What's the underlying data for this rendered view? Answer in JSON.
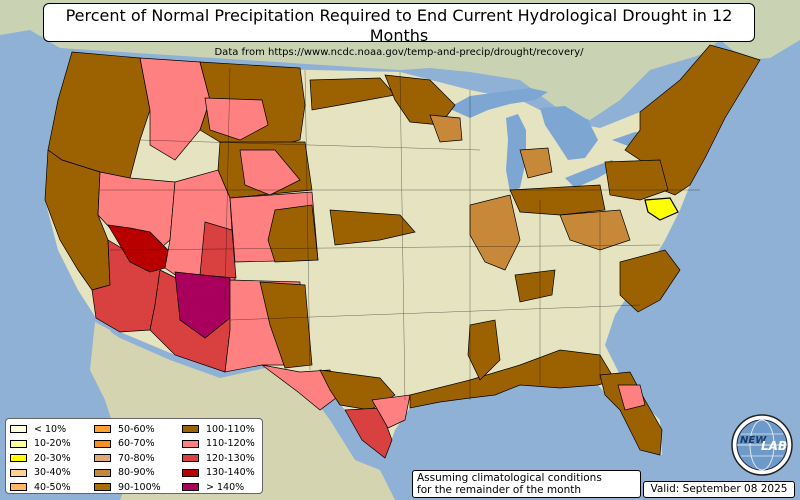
{
  "header": {
    "title": "Percent of Normal Precipitation Required to End Current Hydrological Drought in 12 Months",
    "source": "Data from https://www.ncdc.noaa.gov/temp-and-precip/drought/recovery/"
  },
  "legend": {
    "items": [
      {
        "label": "< 10%",
        "color": "#ffffe0"
      },
      {
        "label": "10-20%",
        "color": "#ffff99"
      },
      {
        "label": "20-30%",
        "color": "#ffff00"
      },
      {
        "label": "30-40%",
        "color": "#ffd090"
      },
      {
        "label": "40-50%",
        "color": "#ffb860"
      },
      {
        "label": "50-60%",
        "color": "#ffa030"
      },
      {
        "label": "60-70%",
        "color": "#f59020"
      },
      {
        "label": "70-80%",
        "color": "#dfa878"
      },
      {
        "label": "80-90%",
        "color": "#c8883a"
      },
      {
        "label": "90-100%",
        "color": "#a96c00"
      },
      {
        "label": "100-110%",
        "color": "#9c6100"
      },
      {
        "label": "110-120%",
        "color": "#ff8080"
      },
      {
        "label": "120-130%",
        "color": "#d94040"
      },
      {
        "label": "130-140%",
        "color": "#b80000"
      },
      {
        "label": "> 140%",
        "color": "#a8005c"
      }
    ]
  },
  "note": {
    "line1": "Assuming climatological conditions",
    "line2": "for the remainder of the month"
  },
  "valid": "Valid: September 08 2025",
  "logo": {
    "text1": "NEW",
    "text2": "LAB",
    "icon": "lab-globe-logo"
  },
  "colors": {
    "ocean": "#8fb1d6",
    "land_us": "#e6e4c0",
    "land_foreign": "#d4dcc0",
    "water_lakes": "#7ea6d3"
  }
}
